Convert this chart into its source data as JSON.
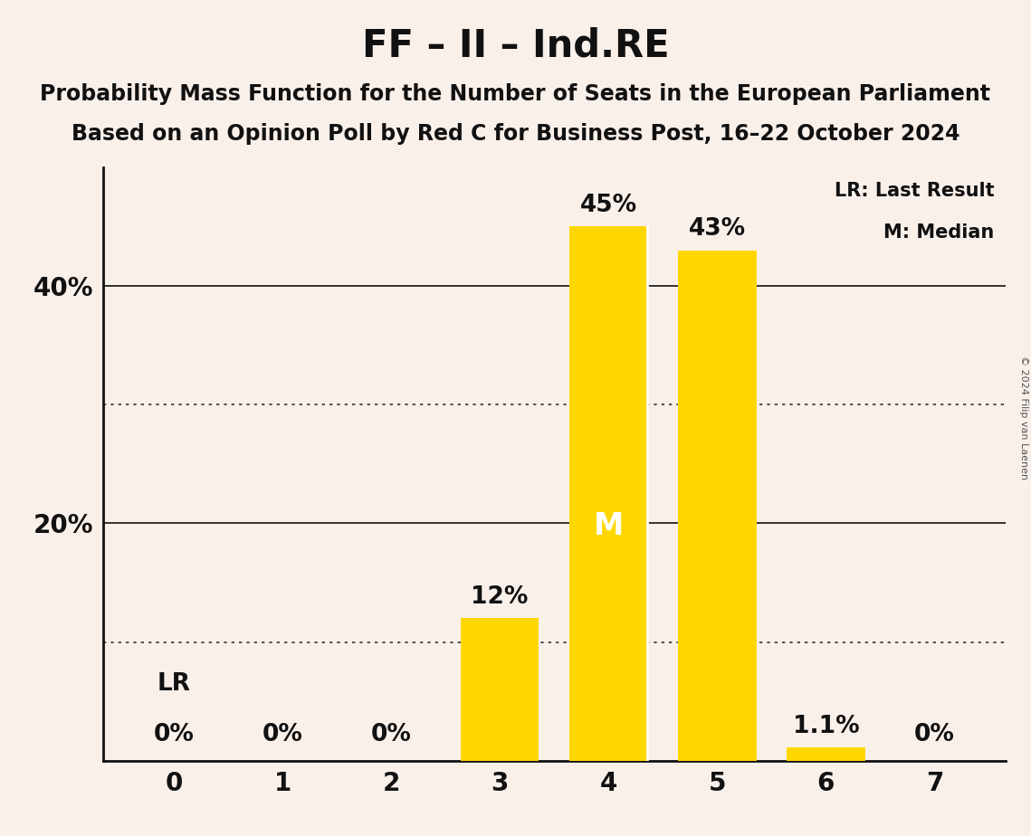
{
  "title": "FF – II – Ind.RE",
  "subtitle1": "Probability Mass Function for the Number of Seats in the European Parliament",
  "subtitle2": "Based on an Opinion Poll by Red C for Business Post, 16–22 October 2024",
  "copyright": "© 2024 Filip van Laenen",
  "categories": [
    0,
    1,
    2,
    3,
    4,
    5,
    6,
    7
  ],
  "values": [
    0.0,
    0.0,
    0.0,
    12.0,
    45.0,
    43.0,
    1.1,
    0.0
  ],
  "bar_color": "#FFD700",
  "background_color": "#FAF0EA",
  "text_color": "#111111",
  "ylim": [
    0,
    50
  ],
  "solid_gridlines": [
    20,
    40
  ],
  "dotted_gridlines": [
    10,
    30
  ],
  "ytick_positions": [
    20,
    40
  ],
  "ytick_labels": [
    "20%",
    "40%"
  ],
  "value_labels": [
    "0%",
    "0%",
    "0%",
    "12%",
    "45%",
    "43%",
    "1.1%",
    "0%"
  ],
  "legend_lr": "LR: Last Result",
  "legend_m": "M: Median",
  "median_bar_index": 4,
  "lr_bar_index": 0,
  "title_fontsize": 30,
  "subtitle_fontsize": 17,
  "bar_width": 0.72,
  "label_fontsize": 19,
  "tick_fontsize": 20
}
